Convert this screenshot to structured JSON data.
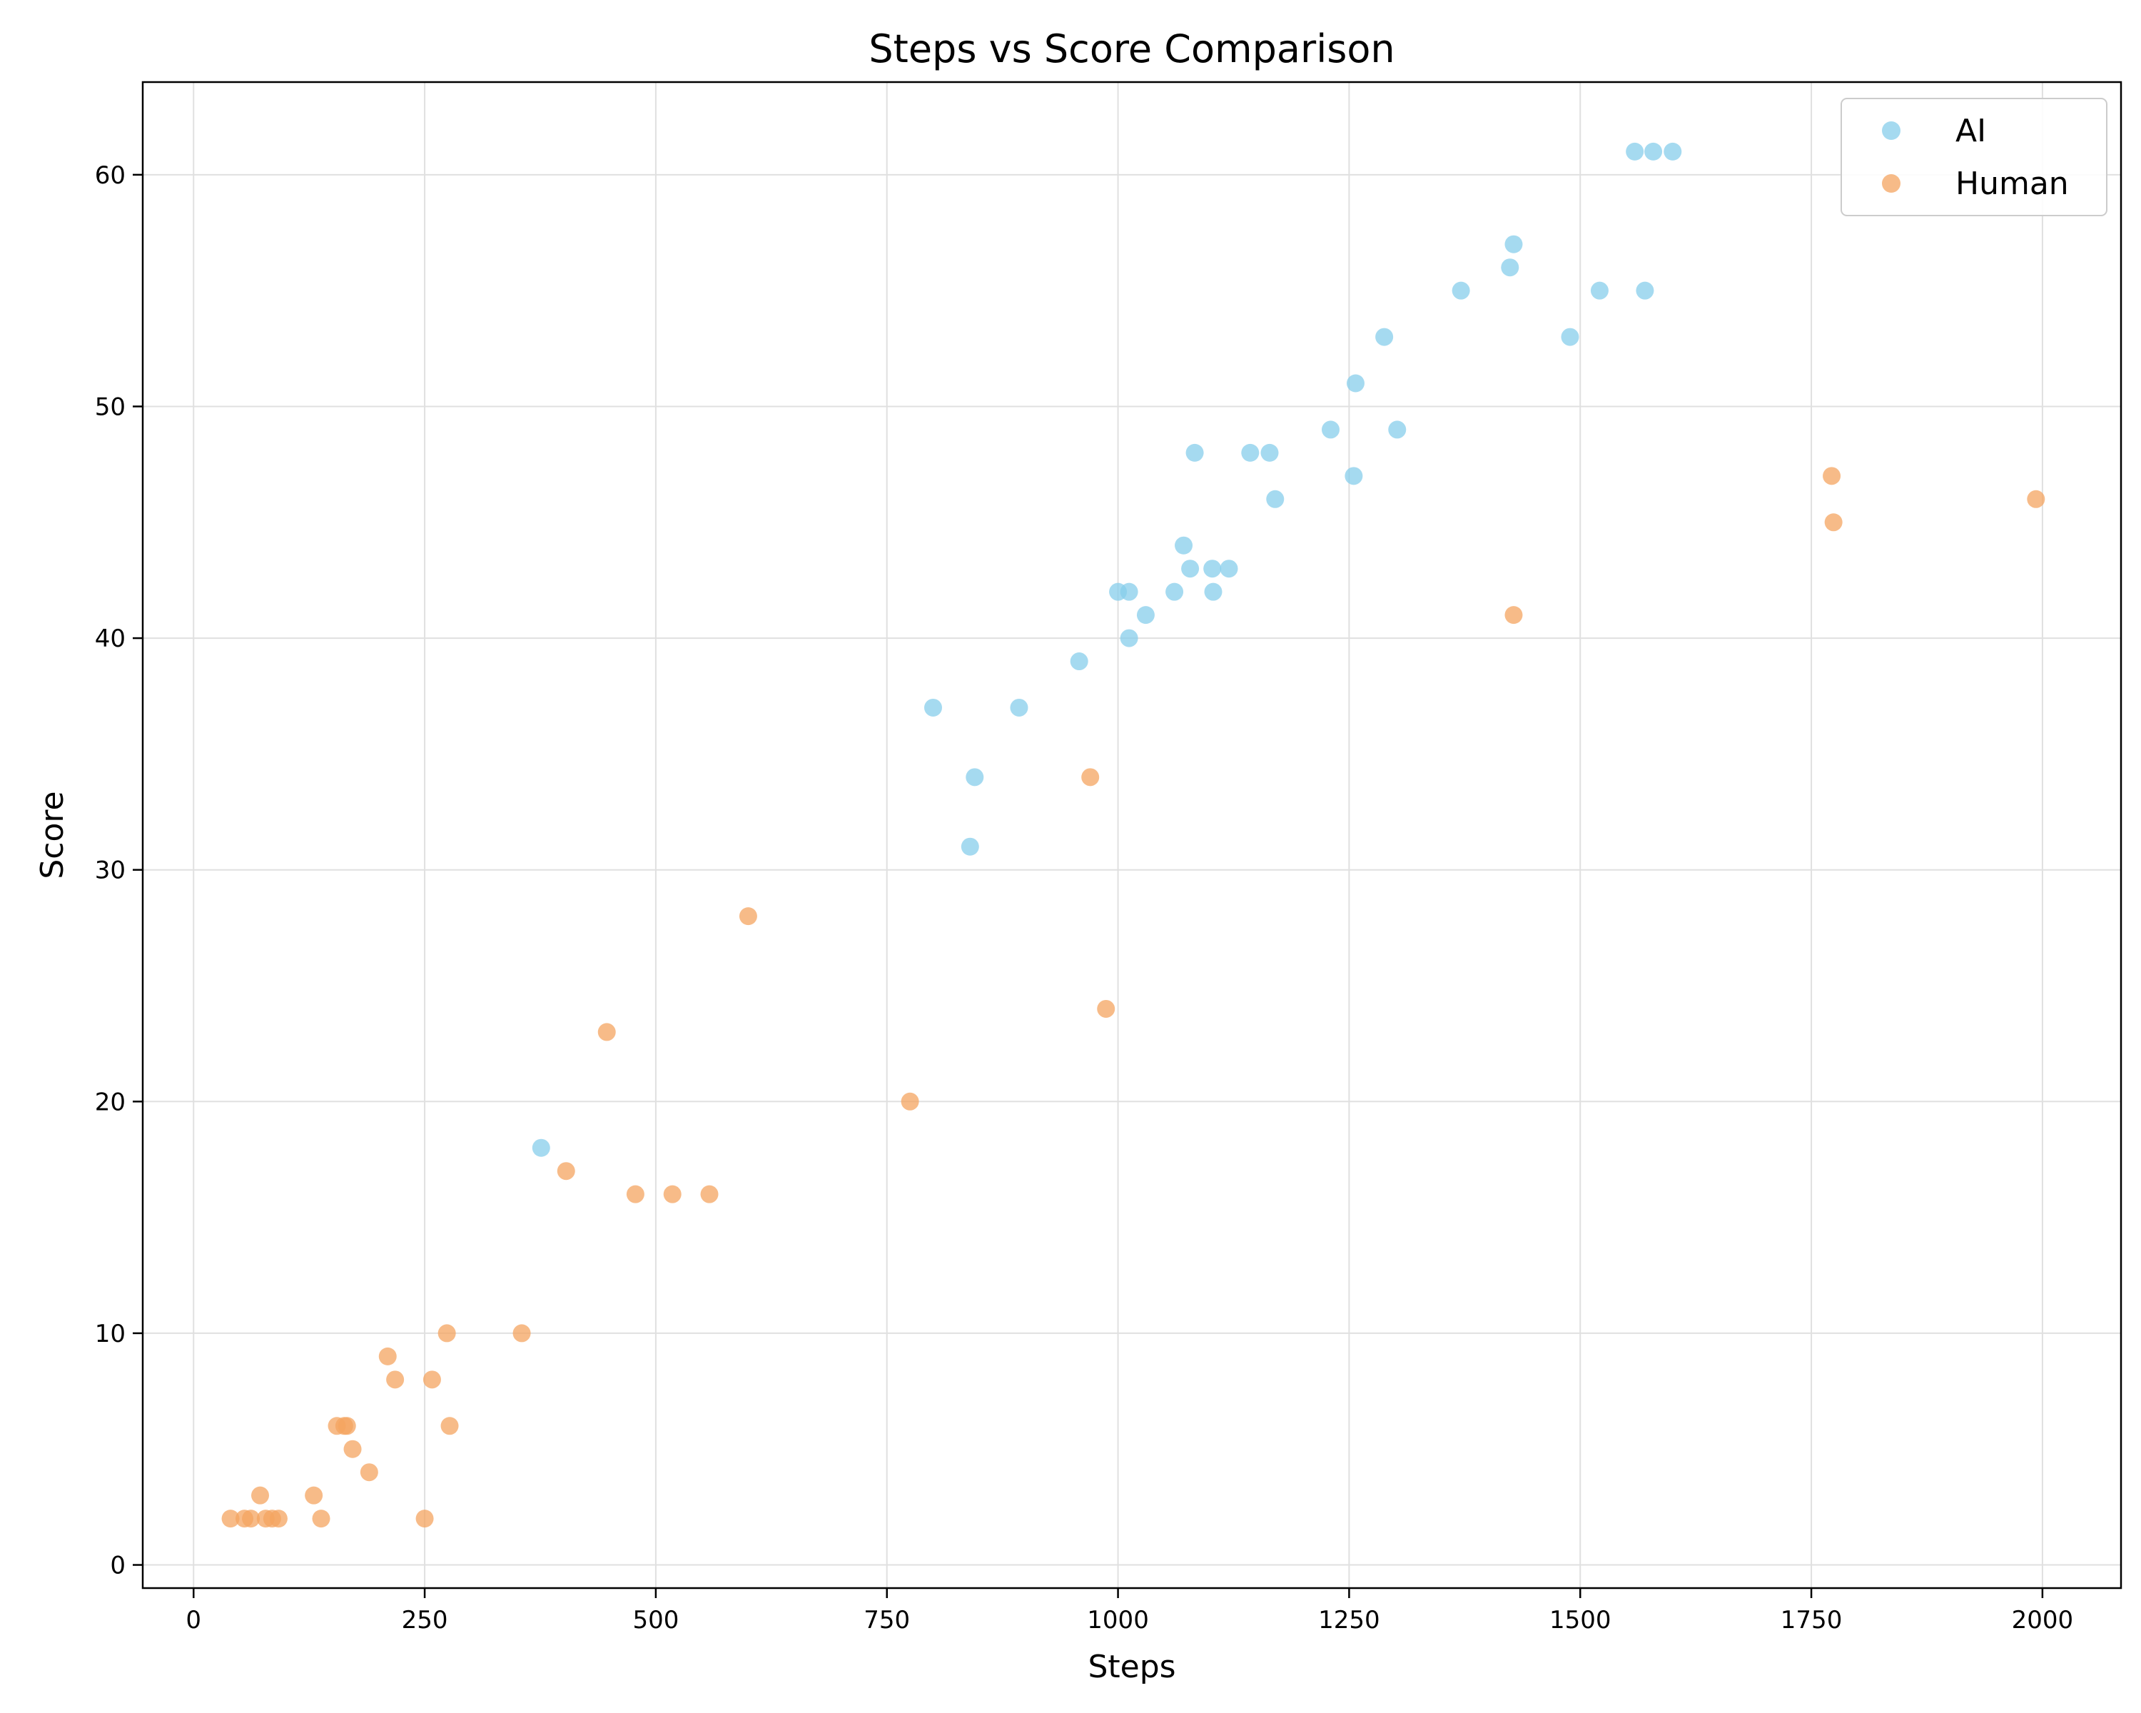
{
  "chart_data": {
    "type": "scatter",
    "title": "Steps vs Score Comparison",
    "xlabel": "Steps",
    "ylabel": "Score",
    "xlim": [
      -55,
      2085
    ],
    "ylim": [
      -1,
      64
    ],
    "xticks": [
      0,
      250,
      500,
      750,
      1000,
      1250,
      1500,
      1750,
      2000
    ],
    "yticks": [
      0,
      10,
      20,
      30,
      40,
      50,
      60
    ],
    "grid": true,
    "legend_position": "top-right",
    "series": [
      {
        "name": "AI",
        "color": "#87CEEB",
        "points": [
          [
            376,
            18
          ],
          [
            800,
            37
          ],
          [
            840,
            31
          ],
          [
            845,
            34
          ],
          [
            893,
            37
          ],
          [
            958,
            39
          ],
          [
            1000,
            42
          ],
          [
            1012,
            42
          ],
          [
            1012,
            40
          ],
          [
            1030,
            41
          ],
          [
            1061,
            42
          ],
          [
            1071,
            44
          ],
          [
            1078,
            43
          ],
          [
            1083,
            48
          ],
          [
            1102,
            43
          ],
          [
            1103,
            42
          ],
          [
            1120,
            43
          ],
          [
            1143,
            48
          ],
          [
            1164,
            48
          ],
          [
            1170,
            46
          ],
          [
            1230,
            49
          ],
          [
            1255,
            47
          ],
          [
            1257,
            51
          ],
          [
            1288,
            53
          ],
          [
            1302,
            49
          ],
          [
            1371,
            55
          ],
          [
            1424,
            56
          ],
          [
            1428,
            57
          ],
          [
            1489,
            53
          ],
          [
            1521,
            55
          ],
          [
            1559,
            61
          ],
          [
            1570,
            55
          ],
          [
            1579,
            61
          ],
          [
            1600,
            61
          ]
        ]
      },
      {
        "name": "Human",
        "color": "#F4A460",
        "points": [
          [
            40,
            2
          ],
          [
            55,
            2
          ],
          [
            62,
            2
          ],
          [
            72,
            3
          ],
          [
            78,
            2
          ],
          [
            85,
            2
          ],
          [
            92,
            2
          ],
          [
            130,
            3
          ],
          [
            138,
            2
          ],
          [
            155,
            6
          ],
          [
            163,
            6
          ],
          [
            166,
            6
          ],
          [
            172,
            5
          ],
          [
            190,
            4
          ],
          [
            210,
            9
          ],
          [
            218,
            8
          ],
          [
            250,
            2
          ],
          [
            258,
            8
          ],
          [
            274,
            10
          ],
          [
            277,
            6
          ],
          [
            355,
            10
          ],
          [
            403,
            17
          ],
          [
            447,
            23
          ],
          [
            478,
            16
          ],
          [
            518,
            16
          ],
          [
            558,
            16
          ],
          [
            600,
            28
          ],
          [
            775,
            20
          ],
          [
            970,
            34
          ],
          [
            987,
            24
          ],
          [
            1428,
            41
          ],
          [
            1772,
            47
          ],
          [
            1774,
            45
          ],
          [
            1993,
            46
          ]
        ]
      }
    ]
  }
}
